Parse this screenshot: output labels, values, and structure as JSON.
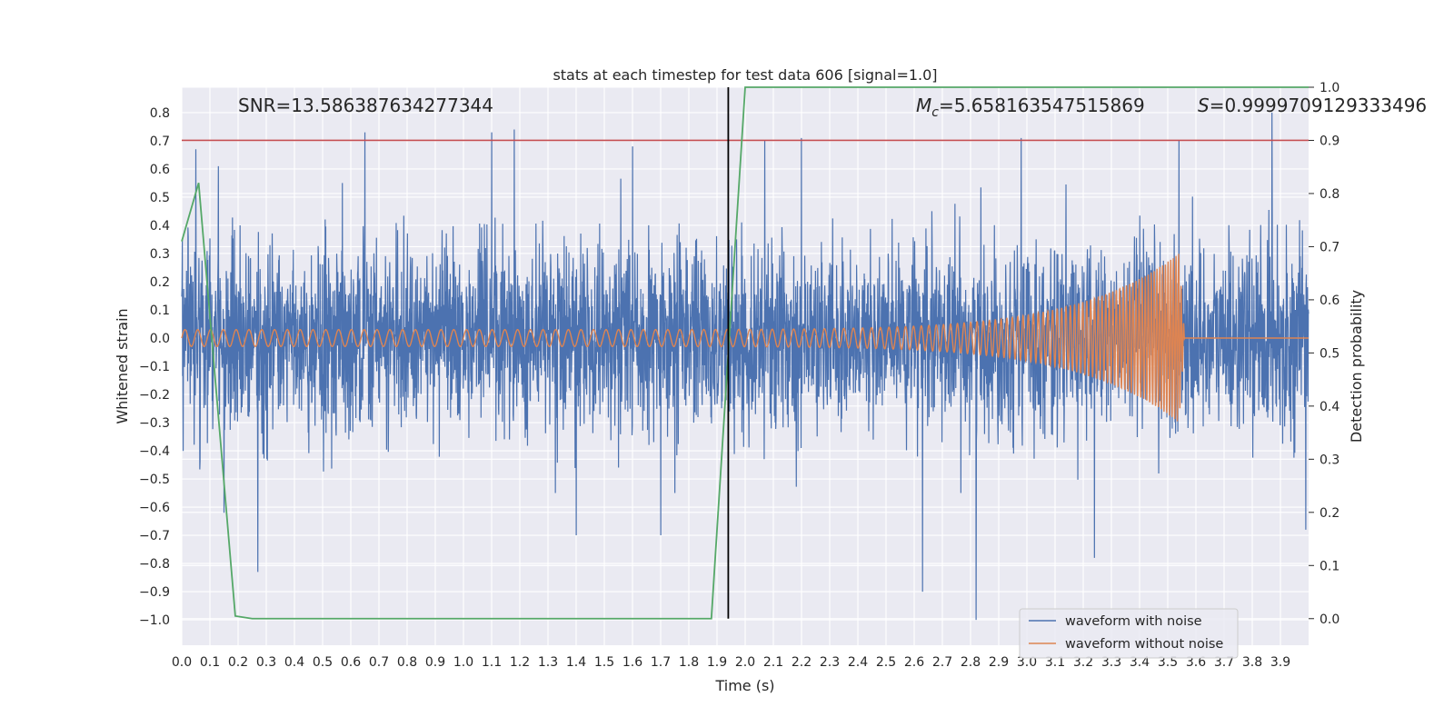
{
  "chart_data": {
    "type": "line",
    "title": "stats at each timestep for test data 606 [signal=1.0]",
    "xlabel": "Time (s)",
    "ylabel": "Whitened strain",
    "y2label": "Detection probability",
    "xlim": [
      0.0,
      4.0
    ],
    "ylim": [
      -1.09,
      0.89
    ],
    "y2lim": [
      -0.05,
      1.0
    ],
    "xticks": [
      "0.0",
      "0.1",
      "0.2",
      "0.3",
      "0.4",
      "0.5",
      "0.6",
      "0.7",
      "0.8",
      "0.9",
      "1.0",
      "1.1",
      "1.2",
      "1.3",
      "1.4",
      "1.5",
      "1.6",
      "1.7",
      "1.8",
      "1.9",
      "2.0",
      "2.1",
      "2.2",
      "2.3",
      "2.4",
      "2.5",
      "2.6",
      "2.7",
      "2.8",
      "2.9",
      "3.0",
      "3.1",
      "3.2",
      "3.3",
      "3.4",
      "3.5",
      "3.6",
      "3.7",
      "3.8",
      "3.9"
    ],
    "yticks": [
      "0.8",
      "0.7",
      "0.6",
      "0.5",
      "0.4",
      "0.3",
      "0.2",
      "0.1",
      "0.0",
      "−0.1",
      "−0.2",
      "−0.3",
      "−0.4",
      "−0.5",
      "−0.6",
      "−0.7",
      "−0.8",
      "−0.9",
      "−1.0"
    ],
    "y2ticks": [
      "1.0",
      "0.9",
      "0.8",
      "0.7",
      "0.6",
      "0.5",
      "0.4",
      "0.3",
      "0.2",
      "0.1",
      "0.0"
    ],
    "annotations": {
      "snr": "SNR=13.586387634277344",
      "mc_symbol": "M",
      "mc_sub": "c",
      "mc_value": "=5.658163547515869",
      "s_symbol": "S",
      "s_value": "=0.9999709129333496"
    },
    "threshold_line": {
      "y2": 0.9,
      "color": "#c44e52"
    },
    "merger_time": 1.94,
    "series": [
      {
        "name": "waveform with noise",
        "axis": "left",
        "color": "#4c72b0",
        "noise_std": 0.16,
        "spikes": [
          [
            0.05,
            0.67
          ],
          [
            0.13,
            0.61
          ],
          [
            0.15,
            -0.62
          ],
          [
            0.27,
            -0.83
          ],
          [
            0.65,
            0.73
          ],
          [
            1.1,
            0.73
          ],
          [
            1.18,
            0.74
          ],
          [
            1.4,
            -0.7
          ],
          [
            1.6,
            0.68
          ],
          [
            1.7,
            -0.7
          ],
          [
            2.07,
            0.7
          ],
          [
            2.2,
            0.71
          ],
          [
            2.63,
            -0.9
          ],
          [
            2.82,
            -1.0
          ],
          [
            2.98,
            0.71
          ],
          [
            3.24,
            -0.78
          ],
          [
            3.54,
            0.7
          ],
          [
            3.87,
            0.8
          ],
          [
            3.99,
            -0.68
          ],
          [
            0.57,
            0.55
          ]
        ]
      },
      {
        "name": "waveform without noise",
        "axis": "left",
        "color": "#dd8452",
        "amp_start": 0.03,
        "amp_end": 0.3,
        "freq_start": 22,
        "freq_end": 110,
        "coalescence": 3.54,
        "ringdown_end": 3.56
      },
      {
        "name": "detection probability",
        "axis": "right",
        "color": "#55a868",
        "x": [
          0.0,
          0.06,
          0.19,
          0.25,
          1.88,
          2.0,
          4.0
        ],
        "y": [
          0.71,
          0.82,
          0.005,
          0.0,
          0.0,
          1.0,
          1.0
        ]
      }
    ],
    "legend": {
      "placement": "lower-right",
      "entries": [
        "waveform with noise",
        "waveform without noise"
      ]
    },
    "grid": true
  }
}
